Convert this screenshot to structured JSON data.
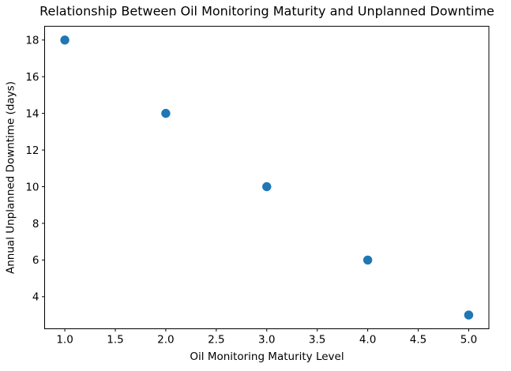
{
  "chart_data": {
    "type": "scatter",
    "title": "Relationship Between Oil Monitoring Maturity and Unplanned Downtime",
    "xlabel": "Oil Monitoring Maturity Level",
    "ylabel": "Annual Unplanned Downtime (days)",
    "points": [
      {
        "x": 1,
        "y": 18
      },
      {
        "x": 2,
        "y": 14
      },
      {
        "x": 3,
        "y": 10
      },
      {
        "x": 4,
        "y": 6
      },
      {
        "x": 5,
        "y": 3
      }
    ],
    "xlim": [
      0.8,
      5.2
    ],
    "ylim": [
      2.25,
      18.75
    ],
    "xticks": [
      1.0,
      1.5,
      2.0,
      2.5,
      3.0,
      3.5,
      4.0,
      4.5,
      5.0
    ],
    "xtick_labels": [
      "1.0",
      "1.5",
      "2.0",
      "2.5",
      "3.0",
      "3.5",
      "4.0",
      "4.5",
      "5.0"
    ],
    "yticks": [
      4,
      6,
      8,
      10,
      12,
      14,
      16,
      18
    ],
    "ytick_labels": [
      "4",
      "6",
      "8",
      "10",
      "12",
      "14",
      "16",
      "18"
    ],
    "marker_color": "#1f77b4",
    "axis_color": "#000000",
    "grid": false,
    "legend": "none"
  }
}
